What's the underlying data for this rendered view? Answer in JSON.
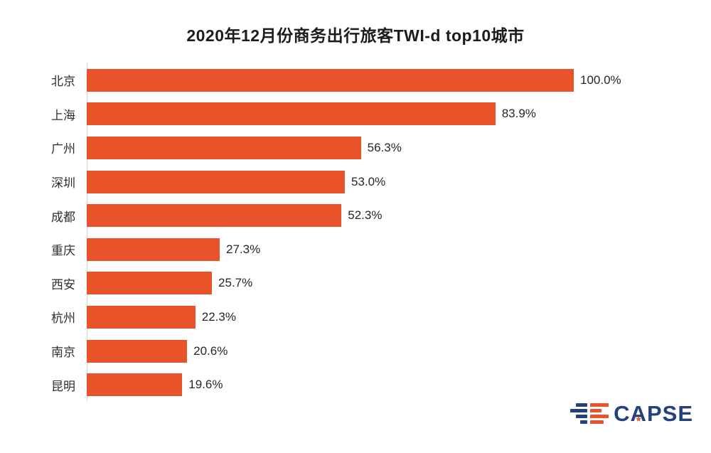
{
  "title": "2020年12月份商务出行旅客TWI-d top10城市",
  "chart_data": {
    "type": "bar",
    "orientation": "horizontal",
    "title": "2020年12月份商务出行旅客TWI-d top10城市",
    "categories": [
      "北京",
      "上海",
      "广州",
      "深圳",
      "成都",
      "重庆",
      "西安",
      "杭州",
      "南京",
      "昆明"
    ],
    "values": [
      100.0,
      83.9,
      56.3,
      53.0,
      52.3,
      27.3,
      25.7,
      22.3,
      20.6,
      19.6
    ],
    "value_labels": [
      "100.0%",
      "83.9%",
      "56.3%",
      "53.0%",
      "52.3%",
      "27.3%",
      "25.7%",
      "22.3%",
      "20.6%",
      "19.6%"
    ],
    "xlabel": "",
    "ylabel": "",
    "xlim": [
      0,
      100
    ],
    "grid": false,
    "legend": false,
    "bar_color": "#e8532a",
    "axis_line_color": "#d9d9d9"
  },
  "logo": {
    "text": "CAPSE",
    "text_color": "#24417b",
    "accent_color": "#e8542a",
    "star_glyph": "★",
    "icon": "capse-stripes-icon"
  }
}
